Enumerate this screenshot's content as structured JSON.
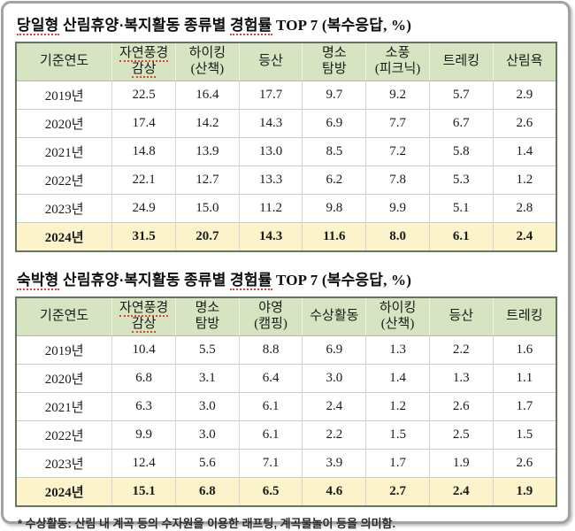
{
  "colors": {
    "header_bg": "#d6e4c1",
    "highlight_bg": "#fcf3cb",
    "spellcheck_underline": "#e0402c",
    "table_border": "#66765c",
    "frame_border": "#a2a2a2"
  },
  "table1": {
    "title_segments": [
      {
        "text": "당일형",
        "underline": true
      },
      {
        "text": "산림휴양·복지활동 종류별",
        "underline": false
      },
      {
        "text": "경험률",
        "underline": true
      },
      {
        "text": "TOP 7 (복수응답, %)",
        "underline": false
      }
    ],
    "columns": [
      {
        "lines": [
          "기준연도"
        ],
        "underline": false
      },
      {
        "lines": [
          "자연풍경",
          "감상"
        ],
        "underline": true
      },
      {
        "lines": [
          "하이킹",
          "(산책)"
        ],
        "underline": false
      },
      {
        "lines": [
          "등산"
        ],
        "underline": false
      },
      {
        "lines": [
          "명소",
          "탐방"
        ],
        "underline": false
      },
      {
        "lines": [
          "소풍",
          "(피크닉)"
        ],
        "underline": false
      },
      {
        "lines": [
          "트레킹"
        ],
        "underline": false
      },
      {
        "lines": [
          "산림욕"
        ],
        "underline": false
      }
    ],
    "rows": [
      {
        "year": "2019년",
        "values": [
          "22.5",
          "16.4",
          "17.7",
          "9.7",
          "9.2",
          "5.7",
          "2.9"
        ],
        "highlight": false
      },
      {
        "year": "2020년",
        "values": [
          "17.4",
          "14.2",
          "14.3",
          "6.9",
          "7.7",
          "6.7",
          "2.6"
        ],
        "highlight": false
      },
      {
        "year": "2021년",
        "values": [
          "14.8",
          "13.9",
          "13.0",
          "8.5",
          "7.2",
          "5.8",
          "1.4"
        ],
        "highlight": false
      },
      {
        "year": "2022년",
        "values": [
          "22.1",
          "12.7",
          "13.3",
          "6.2",
          "7.8",
          "5.3",
          "1.2"
        ],
        "highlight": false
      },
      {
        "year": "2023년",
        "values": [
          "24.9",
          "15.0",
          "11.2",
          "9.8",
          "9.9",
          "5.1",
          "2.8"
        ],
        "highlight": false
      },
      {
        "year": "2024년",
        "values": [
          "31.5",
          "20.7",
          "14.3",
          "11.6",
          "8.0",
          "6.1",
          "2.4"
        ],
        "highlight": true
      }
    ]
  },
  "table2": {
    "title_segments": [
      {
        "text": "숙박형",
        "underline": true
      },
      {
        "text": "산림휴양·복지활동 종류별",
        "underline": false
      },
      {
        "text": "경험률",
        "underline": true
      },
      {
        "text": "TOP 7 (복수응답, %)",
        "underline": false
      }
    ],
    "columns": [
      {
        "lines": [
          "기준연도"
        ],
        "underline": false
      },
      {
        "lines": [
          "자연풍경",
          "감상"
        ],
        "underline": true
      },
      {
        "lines": [
          "명소",
          "탐방"
        ],
        "underline": false
      },
      {
        "lines": [
          "야영",
          "(캠핑)"
        ],
        "underline": false
      },
      {
        "lines": [
          "수상활동"
        ],
        "underline": false
      },
      {
        "lines": [
          "하이킹",
          "(산책)"
        ],
        "underline": false
      },
      {
        "lines": [
          "등산"
        ],
        "underline": false
      },
      {
        "lines": [
          "트레킹"
        ],
        "underline": false
      }
    ],
    "rows": [
      {
        "year": "2019년",
        "values": [
          "10.4",
          "5.5",
          "8.8",
          "6.9",
          "1.3",
          "2.2",
          "1.6"
        ],
        "highlight": false
      },
      {
        "year": "2020년",
        "values": [
          "6.8",
          "3.1",
          "6.4",
          "3.0",
          "1.4",
          "1.3",
          "1.1"
        ],
        "highlight": false
      },
      {
        "year": "2021년",
        "values": [
          "6.3",
          "3.0",
          "6.1",
          "2.4",
          "1.2",
          "2.6",
          "1.7"
        ],
        "highlight": false
      },
      {
        "year": "2022년",
        "values": [
          "9.9",
          "3.0",
          "6.1",
          "2.2",
          "1.5",
          "2.5",
          "1.5"
        ],
        "highlight": false
      },
      {
        "year": "2023년",
        "values": [
          "12.4",
          "5.6",
          "7.1",
          "3.9",
          "1.7",
          "1.9",
          "2.6"
        ],
        "highlight": false
      },
      {
        "year": "2024년",
        "values": [
          "15.1",
          "6.8",
          "6.5",
          "4.6",
          "2.7",
          "2.4",
          "1.9"
        ],
        "highlight": true
      }
    ]
  },
  "footnote": "* 수상활동: 산림 내 계곡 등의 수자원을 이용한 래프팅, 계곡물놀이 등을 의미함."
}
